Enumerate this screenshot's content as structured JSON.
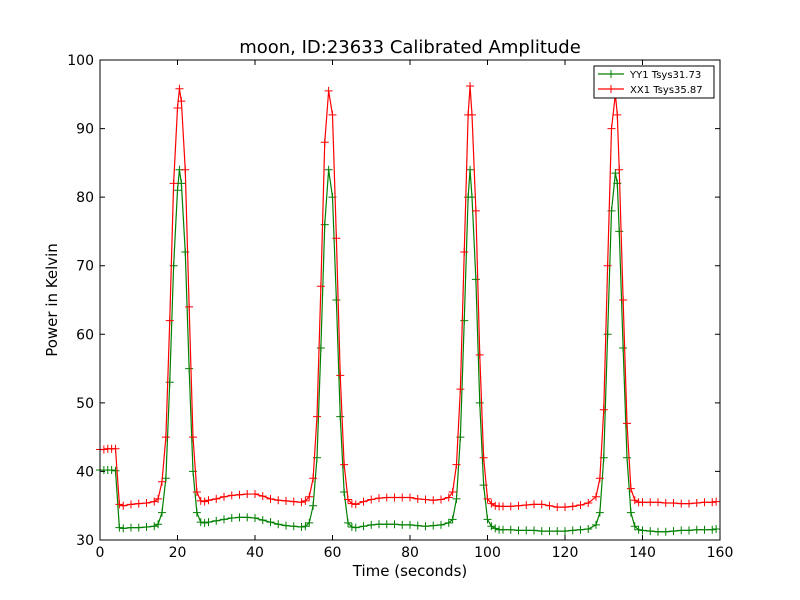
{
  "chart_data": {
    "type": "line",
    "title": "moon, ID:23633 Calibrated Amplitude",
    "xlabel": "Time (seconds)",
    "ylabel": "Power in Kelvin",
    "xlim": [
      0,
      160
    ],
    "ylim": [
      30,
      100
    ],
    "xticks": [
      0,
      20,
      40,
      60,
      80,
      100,
      120,
      140,
      160
    ],
    "yticks": [
      30,
      40,
      50,
      60,
      70,
      80,
      90,
      100
    ],
    "grid": false,
    "legend_position": "top-right",
    "marker": "+",
    "series": [
      {
        "name": "YY1 Tsys31.73",
        "color": "#008000",
        "x": [
          0,
          1,
          2,
          3,
          4,
          5,
          6,
          8,
          10,
          12,
          14,
          15,
          16,
          17,
          18,
          19,
          20,
          20.5,
          21,
          22,
          23,
          24,
          25,
          26,
          27,
          28,
          30,
          32,
          34,
          36,
          38,
          40,
          42,
          44,
          46,
          48,
          50,
          52,
          53,
          54,
          55,
          56,
          57,
          58,
          59,
          60,
          61,
          62,
          63,
          64,
          65,
          66,
          68,
          70,
          72,
          74,
          76,
          78,
          80,
          82,
          84,
          86,
          88,
          90,
          91,
          92,
          93,
          94,
          95,
          95.5,
          96,
          97,
          98,
          99,
          100,
          101,
          102,
          103,
          104,
          106,
          108,
          110,
          112,
          114,
          116,
          118,
          120,
          122,
          124,
          126,
          128,
          129,
          130,
          131,
          132,
          133,
          133.5,
          134,
          135,
          136,
          137,
          138,
          139,
          140,
          142,
          144,
          146,
          148,
          150,
          152,
          154,
          156,
          158,
          159
        ],
        "values": [
          40.2,
          40.2,
          40.2,
          40.2,
          40.1,
          31.8,
          31.7,
          31.8,
          31.8,
          31.9,
          32.0,
          32.3,
          34.0,
          39.0,
          53.0,
          70.0,
          81.0,
          84.0,
          82.0,
          72.0,
          55.0,
          40.0,
          34.0,
          32.6,
          32.5,
          32.6,
          32.8,
          33.0,
          33.2,
          33.3,
          33.3,
          33.2,
          32.9,
          32.6,
          32.3,
          32.1,
          32.0,
          31.9,
          32.0,
          32.5,
          35.0,
          42.0,
          58.0,
          76.0,
          84.0,
          80.0,
          65.0,
          48.0,
          37.0,
          32.5,
          31.9,
          31.8,
          32.0,
          32.2,
          32.3,
          32.3,
          32.3,
          32.2,
          32.2,
          32.1,
          32.0,
          32.1,
          32.2,
          32.5,
          33.0,
          36.0,
          45.0,
          62.0,
          80.0,
          84.0,
          80.0,
          68.0,
          50.0,
          38.0,
          33.0,
          32.0,
          31.7,
          31.5,
          31.5,
          31.5,
          31.4,
          31.4,
          31.4,
          31.3,
          31.3,
          31.3,
          31.3,
          31.4,
          31.5,
          31.6,
          32.2,
          34.0,
          42.0,
          60.0,
          78.0,
          83.5,
          82.0,
          75.0,
          58.0,
          42.0,
          34.0,
          32.0,
          31.5,
          31.4,
          31.3,
          31.2,
          31.2,
          31.3,
          31.4,
          31.4,
          31.5,
          31.5,
          31.5,
          31.6
        ]
      },
      {
        "name": "XX1 Tsys35.87",
        "color": "#ff0000",
        "x": [
          0,
          1,
          2,
          3,
          4,
          5,
          6,
          8,
          10,
          12,
          14,
          15,
          16,
          17,
          18,
          19,
          20,
          20.5,
          21,
          22,
          23,
          24,
          25,
          26,
          27,
          28,
          30,
          32,
          34,
          36,
          38,
          40,
          42,
          44,
          46,
          48,
          50,
          52,
          53,
          54,
          55,
          56,
          57,
          58,
          59,
          60,
          61,
          62,
          63,
          64,
          65,
          66,
          68,
          70,
          72,
          74,
          76,
          78,
          80,
          82,
          84,
          86,
          88,
          90,
          91,
          92,
          93,
          94,
          95,
          95.5,
          96,
          97,
          98,
          99,
          100,
          101,
          102,
          103,
          104,
          106,
          108,
          110,
          112,
          114,
          116,
          118,
          120,
          122,
          124,
          126,
          128,
          129,
          130,
          131,
          132,
          133,
          133.5,
          134,
          135,
          136,
          137,
          138,
          139,
          140,
          142,
          144,
          146,
          148,
          150,
          152,
          154,
          156,
          158,
          159
        ],
        "values": [
          43.2,
          43.2,
          43.3,
          43.3,
          43.3,
          35.2,
          35.0,
          35.2,
          35.3,
          35.4,
          35.6,
          36.0,
          38.5,
          45.0,
          62.0,
          82.0,
          93.0,
          95.8,
          94.0,
          84.0,
          64.0,
          45.0,
          37.0,
          35.7,
          35.6,
          35.8,
          36.0,
          36.3,
          36.5,
          36.6,
          36.7,
          36.7,
          36.4,
          36.0,
          35.8,
          35.7,
          35.6,
          35.5,
          35.7,
          36.3,
          39.0,
          48.0,
          67.0,
          88.0,
          95.5,
          92.0,
          74.0,
          54.0,
          41.0,
          35.9,
          35.3,
          35.2,
          35.6,
          35.9,
          36.1,
          36.2,
          36.2,
          36.2,
          36.2,
          36.0,
          35.9,
          35.8,
          35.9,
          36.2,
          37.0,
          41.0,
          52.0,
          72.0,
          92.0,
          96.2,
          92.0,
          78.0,
          57.0,
          42.0,
          36.0,
          35.3,
          35.0,
          34.9,
          34.9,
          34.9,
          35.0,
          35.1,
          35.2,
          35.2,
          35.0,
          34.8,
          34.8,
          34.9,
          35.1,
          35.4,
          36.3,
          39.0,
          49.0,
          70.0,
          90.0,
          95.0,
          92.0,
          84.0,
          65.0,
          47.0,
          37.5,
          35.8,
          35.5,
          35.5,
          35.5,
          35.5,
          35.4,
          35.4,
          35.3,
          35.3,
          35.4,
          35.5,
          35.5,
          35.6
        ]
      }
    ]
  }
}
